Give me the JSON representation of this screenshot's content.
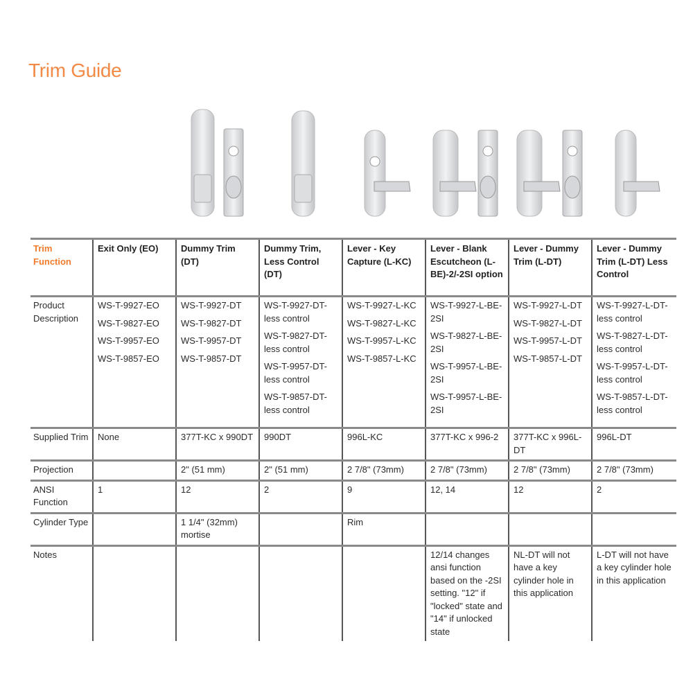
{
  "title": "Trim Guide",
  "colors": {
    "accent": "#f28a45",
    "grid": "#8a8a8a",
    "metal": "#d9dbde"
  },
  "images": [
    {
      "column": 2,
      "icons": [
        "push-pad-trim-icon",
        "escutcheon-thumbturn-cylinder-icon"
      ]
    },
    {
      "column": 3,
      "icons": [
        "push-pad-trim-icon"
      ]
    },
    {
      "column": 4,
      "icons": [
        "lever-with-cylinder-icon"
      ]
    },
    {
      "column": 5,
      "icons": [
        "lever-trim-icon",
        "escutcheon-thumbturn-cylinder-icon"
      ]
    },
    {
      "column": 6,
      "icons": [
        "lever-trim-icon",
        "escutcheon-thumbturn-cylinder-icon"
      ]
    },
    {
      "column": 7,
      "icons": [
        "lever-trim-icon"
      ]
    }
  ],
  "table": {
    "header": [
      "Trim Function",
      "Exit Only (EO)",
      "Dummy Trim (DT)",
      "Dummy Trim, Less Control (DT)",
      "Lever - Key Capture (L-KC)",
      "Lever - Blank Escutcheon (L-BE)-2/-2SI option",
      "Lever - Dummy Trim (L-DT)",
      "Lever - Dummy Trim (L-DT) Less Control"
    ],
    "product": {
      "label": "Product Description",
      "cells": [
        [
          "WS-T-9927-EO",
          "WS-T-9827-EO",
          "WS-T-9957-EO",
          "WS-T-9857-EO"
        ],
        [
          "WS-T-9927-DT",
          "WS-T-9827-DT",
          "WS-T-9957-DT",
          "WS-T-9857-DT"
        ],
        [
          "WS-T-9927-DT-less control",
          "WS-T-9827-DT-less control",
          "WS-T-9957-DT-less control",
          "WS-T-9857-DT-less control"
        ],
        [
          "WS-T-9927-L-KC",
          "WS-T-9827-L-KC",
          "WS-T-9957-L-KC",
          "WS-T-9857-L-KC"
        ],
        [
          "WS-T-9927-L-BE-2SI",
          "WS-T-9827-L-BE-2SI",
          "WS-T-9957-L-BE-2SI",
          "WS-T-9957-L-BE-2SI"
        ],
        [
          "WS-T-9927-L-DT",
          "WS-T-9827-L-DT",
          "WS-T-9957-L-DT",
          "WS-T-9857-L-DT"
        ],
        [
          "WS-T-9927-L-DT-less control",
          "WS-T-9827-L-DT-less control",
          "WS-T-9957-L-DT-less control",
          "WS-T-9857-L-DT-less control"
        ]
      ]
    },
    "rows": [
      {
        "label": "Supplied Trim",
        "cells": [
          "None",
          "377T-KC x 990DT",
          "990DT",
          "996L-KC",
          "377T-KC x 996-2",
          "377T-KC x 996L-DT",
          "996L-DT"
        ]
      },
      {
        "label": "Projection",
        "cells": [
          "",
          "2\" (51 mm)",
          "2\" (51 mm)",
          "2 7/8\" (73mm)",
          "2 7/8\" (73mm)",
          "2 7/8\" (73mm)",
          "2 7/8\" (73mm)"
        ]
      },
      {
        "label": "ANSI Function",
        "cells": [
          "1",
          "12",
          "2",
          "9",
          "12, 14",
          "12",
          "2"
        ]
      },
      {
        "label": "Cylinder Type",
        "cells": [
          "",
          "1 1/4\" (32mm) mortise",
          "",
          "Rim",
          "",
          "",
          ""
        ]
      },
      {
        "label": "Notes",
        "cells": [
          "",
          "",
          "",
          "",
          "12/14 changes ansi function based on the -2SI setting. \"12\" if \"locked\" state and \"14\" if unlocked state",
          "NL-DT will not have a key cylinder hole in this application",
          "L-DT will not have a key cylinder hole in this application"
        ]
      }
    ]
  }
}
